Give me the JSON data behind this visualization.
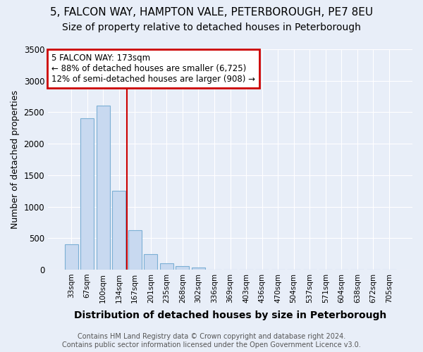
{
  "title_line1": "5, FALCON WAY, HAMPTON VALE, PETERBOROUGH, PE7 8EU",
  "title_line2": "Size of property relative to detached houses in Peterborough",
  "xlabel": "Distribution of detached houses by size in Peterborough",
  "ylabel": "Number of detached properties",
  "footer_line1": "Contains HM Land Registry data © Crown copyright and database right 2024.",
  "footer_line2": "Contains public sector information licensed under the Open Government Licence v3.0.",
  "categories": [
    "33sqm",
    "67sqm",
    "100sqm",
    "134sqm",
    "167sqm",
    "201sqm",
    "235sqm",
    "268sqm",
    "302sqm",
    "336sqm",
    "369sqm",
    "403sqm",
    "436sqm",
    "470sqm",
    "504sqm",
    "537sqm",
    "571sqm",
    "604sqm",
    "638sqm",
    "672sqm",
    "705sqm"
  ],
  "values": [
    400,
    2400,
    2600,
    1250,
    630,
    250,
    100,
    50,
    30,
    0,
    0,
    0,
    0,
    0,
    0,
    0,
    0,
    0,
    0,
    0,
    0
  ],
  "bar_color": "#c8d9f0",
  "bar_edge_color": "#7bafd4",
  "vline_color": "#cc0000",
  "vline_x": 4,
  "annotation_text_line1": "5 FALCON WAY: 173sqm",
  "annotation_text_line2": "← 88% of detached houses are smaller (6,725)",
  "annotation_text_line3": "12% of semi-detached houses are larger (908) →",
  "annotation_box_color": "#ffffff",
  "annotation_border_color": "#cc0000",
  "ylim": [
    0,
    3500
  ],
  "yticks": [
    0,
    500,
    1000,
    1500,
    2000,
    2500,
    3000,
    3500
  ],
  "bg_color": "#e8eef8",
  "plot_bg_color": "#e8eef8",
  "grid_color": "#ffffff",
  "title_fontsize": 11,
  "subtitle_fontsize": 10,
  "xlabel_fontsize": 10,
  "ylabel_fontsize": 9,
  "footer_fontsize": 7
}
